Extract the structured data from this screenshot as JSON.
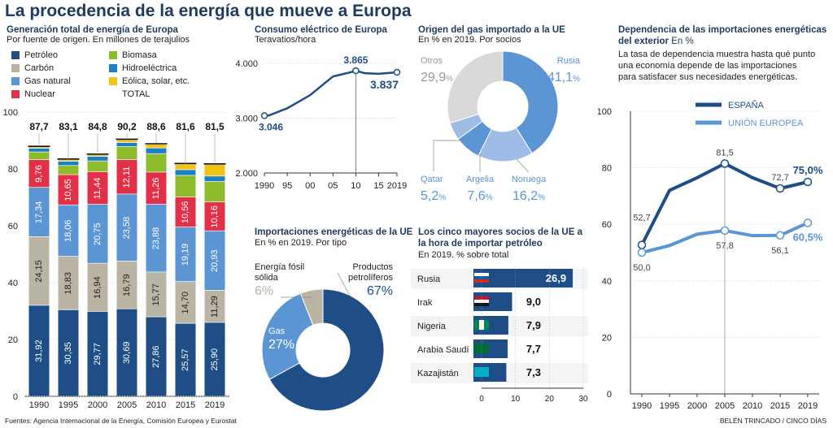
{
  "title": "La procedencia de la energía que mueve a Europa",
  "footer": {
    "sources": "Fuentes: Agencia Internacional de la Energía, Comisión Europea y Eurostat",
    "credit": "BELÉN TRINCADO / CINCO DÍAS"
  },
  "colors": {
    "dark_blue": "#1f4e87",
    "mid_blue": "#5b95d3",
    "light_blue": "#9dbde6",
    "beige": "#b9b4a4",
    "red": "#e33049",
    "green": "#8dbb2c",
    "cyan": "#1b80c6",
    "yellow": "#f2c318",
    "grey": "#d9d9d9"
  },
  "panel1": {
    "title": "Generación total de energía de Europa",
    "subtitle": "Por fuente de origen. En millones de terajulios",
    "legend": [
      {
        "label": "Petróleo",
        "color": "#1f4e87"
      },
      {
        "label": "Biomasa",
        "color": "#8dbb2c"
      },
      {
        "label": "Carbón",
        "color": "#b9b4a4"
      },
      {
        "label": "Hidroeléctrica",
        "color": "#1b80c6"
      },
      {
        "label": "Gas natural",
        "color": "#5b95d3"
      },
      {
        "label": "Eólica, solar, etc.",
        "color": "#f2c318"
      },
      {
        "label": "Nuclear",
        "color": "#e33049"
      },
      {
        "label": "TOTAL",
        "color": ""
      }
    ]
  },
  "panel2": {
    "title": "Consumo eléctrico de Europa",
    "subtitle": "Teravatios/hora"
  },
  "panel3": {
    "title": "Origen del gas importado a la UE",
    "subtitle": "En % en 2019. Por socios"
  },
  "panel4": {
    "title_line1": "Dependencia de las importaciones energéticas",
    "title_line2": "del exterior",
    "title_unit": "En %",
    "description": [
      "La tasa de dependencia muestra hasta qué punto",
      "una economía depende de las importaciones",
      "para satisfacer sus necesidades energéticas."
    ]
  },
  "panel5": {
    "title": "Importaciones energéticas de la UE",
    "subtitle": "En % en 2019. Por tipo"
  },
  "panel6": {
    "title_line1": "Los cinco mayores socios de la UE a",
    "title_line2": "la hora de importar petróleo",
    "subtitle": "En 2019. % sobre total"
  },
  "chart_data": [
    {
      "id": "generation",
      "type": "bar",
      "stacked": true,
      "categories": [
        "1990",
        "1995",
        "2000",
        "2005",
        "2010",
        "2015",
        "2019"
      ],
      "ylim": [
        0,
        100
      ],
      "yticks": [
        0,
        20,
        40,
        60,
        80,
        100
      ],
      "totals": [
        "87,7",
        "83,1",
        "84,8",
        "90,2",
        "88,6",
        "81,6",
        "81,5"
      ],
      "series": [
        {
          "name": "Petróleo",
          "values": [
            31.92,
            30.35,
            29.77,
            30.69,
            27.86,
            25.57,
            25.9
          ],
          "labels": [
            "31,92",
            "30,35",
            "29,77",
            "30,69",
            "27,86",
            "25,57",
            "25,90"
          ]
        },
        {
          "name": "Carbón",
          "values": [
            24.15,
            18.83,
            16.94,
            16.79,
            15.77,
            14.7,
            11.29
          ],
          "labels": [
            "24,15",
            "18,83",
            "16,94",
            "16,79",
            "15,77",
            "14,70",
            "11,29"
          ]
        },
        {
          "name": "Gas natural",
          "values": [
            17.34,
            18.06,
            20.75,
            23.58,
            23.88,
            19.19,
            20.93
          ],
          "labels": [
            "17,34",
            "18,06",
            "20,75",
            "23,58",
            "23,88",
            "19,19",
            "20,93"
          ]
        },
        {
          "name": "Nuclear",
          "values": [
            9.76,
            10.65,
            11.44,
            12.11,
            11.26,
            10.56,
            10.16
          ],
          "labels": [
            "9,76",
            "10,65",
            "11,44",
            "12,11",
            "11,26",
            "10,56",
            "10,16"
          ]
        },
        {
          "name": "Biomasa",
          "values": [
            2.7,
            3.2,
            3.8,
            4.6,
            6.5,
            7.6,
            7.2
          ],
          "labels": []
        },
        {
          "name": "Hidroeléctrica",
          "values": [
            1.3,
            1.5,
            1.6,
            1.4,
            2.0,
            2.0,
            1.9
          ],
          "labels": []
        },
        {
          "name": "Eólica, solar, etc.",
          "values": [
            0.5,
            0.6,
            0.6,
            1.0,
            1.3,
            2.0,
            4.1
          ],
          "labels": []
        }
      ]
    },
    {
      "id": "electricity",
      "type": "line",
      "x": [
        1990,
        1991,
        1995,
        2000,
        2005,
        2008,
        2010,
        2012,
        2015,
        2019
      ],
      "values": [
        3046,
        3050,
        3180,
        3420,
        3760,
        3820,
        3865,
        3820,
        3810,
        3837
      ],
      "xticks": [
        "1990",
        "95",
        "00",
        "05",
        "10",
        "15",
        "2019"
      ],
      "xtick_values": [
        1990,
        1995,
        2000,
        2005,
        2010,
        2015,
        2019
      ],
      "ylim": [
        2000,
        4000
      ],
      "yticks": [
        "2.000",
        "3.000",
        "4.000"
      ],
      "ytick_values": [
        2000,
        3000,
        4000
      ],
      "annotations": [
        {
          "x": 1990,
          "y": 3046,
          "label": "3.046"
        },
        {
          "x": 2010,
          "y": 3865,
          "label": "3.865"
        },
        {
          "x": 2019,
          "y": 3837,
          "label": "3.837"
        }
      ]
    },
    {
      "id": "gas_origin",
      "type": "pie",
      "donut": true,
      "slices": [
        {
          "name": "Rusia",
          "value": 41.1,
          "label": "41,1",
          "color": "#5b95d3"
        },
        {
          "name": "Noruega",
          "value": 16.2,
          "label": "16,2",
          "color": "#9dbde6"
        },
        {
          "name": "Argelia",
          "value": 7.6,
          "label": "7,6",
          "color": "#5b95d3"
        },
        {
          "name": "Qatar",
          "value": 5.2,
          "label": "5,2",
          "color": "#9dbde6"
        },
        {
          "name": "Otros",
          "value": 29.9,
          "label": "29,9",
          "color": "#d9d9d9"
        }
      ]
    },
    {
      "id": "dependency",
      "type": "line",
      "categories": [
        "1990",
        "1995",
        "2000",
        "2005",
        "2010",
        "2015",
        "2019"
      ],
      "ylim": [
        0,
        100
      ],
      "yticks": [
        0,
        20,
        40,
        60,
        80,
        100
      ],
      "series": [
        {
          "name": "ESPAÑA",
          "color": "#1f4e87",
          "values": [
            52.7,
            72.0,
            76.5,
            81.5,
            76.5,
            72.7,
            75.0
          ],
          "labels": {
            "0": "52,7",
            "3": "81,5",
            "5": "72,7",
            "6": "75,0%"
          }
        },
        {
          "name": "UNIÓN EUROPEA",
          "color": "#5b95d3",
          "values": [
            50.0,
            52.5,
            56.5,
            57.8,
            56.0,
            56.1,
            60.5
          ],
          "labels": {
            "0": "50,0",
            "3": "57,8",
            "5": "56,1",
            "6": "60,5%"
          }
        }
      ]
    },
    {
      "id": "imports_type",
      "type": "pie",
      "donut": true,
      "slices": [
        {
          "name": "Productos petrolíferos",
          "value": 67,
          "label": "67%",
          "color": "#1f4e87"
        },
        {
          "name": "Gas",
          "value": 27,
          "label": "27%",
          "color": "#5b95d3"
        },
        {
          "name": "Energía fósil sólida",
          "value": 6,
          "label": "6%",
          "color": "#b9b4a4"
        }
      ]
    },
    {
      "id": "oil_partners",
      "type": "bar",
      "orientation": "horizontal",
      "categories": [
        "Rusia",
        "Irak",
        "Nigeria",
        "Arabia Saudí",
        "Kazajistán"
      ],
      "values": [
        26.9,
        9.0,
        7.9,
        7.7,
        7.3
      ],
      "labels": [
        "26,9",
        "9,0",
        "7,9",
        "7,7",
        "7,3"
      ],
      "xlim": [
        0,
        30
      ],
      "xticks": [
        0,
        10,
        20,
        30
      ]
    }
  ]
}
